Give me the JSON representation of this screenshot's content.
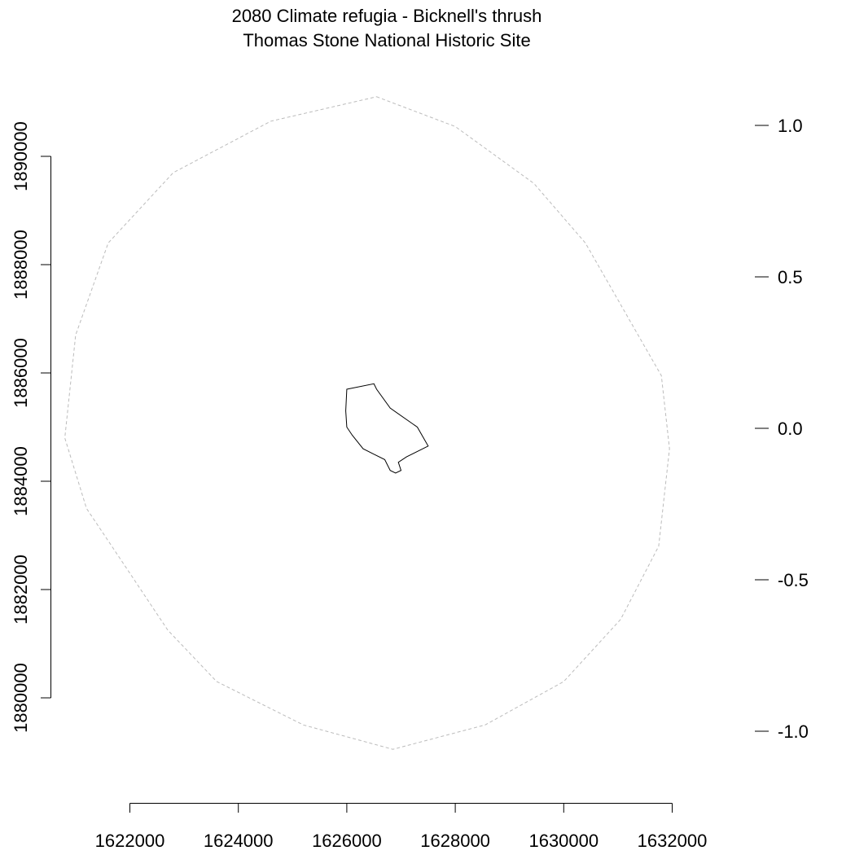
{
  "title": {
    "line1": "2080 Climate refugia - Bicknell's thrush",
    "line2": "Thomas Stone National Historic Site"
  },
  "chart_data": {
    "type": "map",
    "x_axis": {
      "range": [
        1622000,
        1632000
      ],
      "tick_values": [
        1622000,
        1624000,
        1626000,
        1628000,
        1630000,
        1632000
      ],
      "tick_labels": [
        "1622000",
        "1624000",
        "1626000",
        "1628000",
        "1630000",
        "1632000"
      ]
    },
    "y_axis": {
      "range": [
        1880000,
        1890000
      ],
      "tick_values": [
        1880000,
        1882000,
        1884000,
        1886000,
        1888000,
        1890000
      ],
      "tick_labels": [
        "1880000",
        "1882000",
        "1884000",
        "1886000",
        "1888000",
        "1890000"
      ]
    },
    "legend_axis": {
      "range": [
        -1.0,
        1.0
      ],
      "tick_values": [
        1.0,
        0.5,
        0.0,
        -0.5,
        -1.0
      ],
      "tick_labels": [
        "1.0",
        "0.5",
        "0.0",
        "-0.5",
        "-1.0"
      ]
    },
    "buffer_ring": {
      "style": "dashed",
      "color": "#bbbbbb",
      "points": [
        [
          1626550,
          1891100
        ],
        [
          1628000,
          1890550
        ],
        [
          1629450,
          1889500
        ],
        [
          1630400,
          1888400
        ],
        [
          1631200,
          1887000
        ],
        [
          1631800,
          1885950
        ],
        [
          1631950,
          1884600
        ],
        [
          1631750,
          1882800
        ],
        [
          1631050,
          1881450
        ],
        [
          1630000,
          1880300
        ],
        [
          1628550,
          1879500
        ],
        [
          1626850,
          1879050
        ],
        [
          1625200,
          1879500
        ],
        [
          1623600,
          1880300
        ],
        [
          1622700,
          1881250
        ],
        [
          1621800,
          1882600
        ],
        [
          1621200,
          1883500
        ],
        [
          1620800,
          1884800
        ],
        [
          1621000,
          1886700
        ],
        [
          1621600,
          1888400
        ],
        [
          1622800,
          1889700
        ],
        [
          1624600,
          1890650
        ]
      ]
    },
    "park_boundary": {
      "style": "solid",
      "color": "#000000",
      "points": [
        [
          1626000,
          1885700
        ],
        [
          1626500,
          1885800
        ],
        [
          1626550,
          1885700
        ],
        [
          1626800,
          1885350
        ],
        [
          1627300,
          1885000
        ],
        [
          1627500,
          1884650
        ],
        [
          1627100,
          1884450
        ],
        [
          1626950,
          1884350
        ],
        [
          1627000,
          1884200
        ],
        [
          1626900,
          1884150
        ],
        [
          1626800,
          1884200
        ],
        [
          1626700,
          1884400
        ],
        [
          1626500,
          1884500
        ],
        [
          1626300,
          1884600
        ],
        [
          1626100,
          1884850
        ],
        [
          1626000,
          1885000
        ],
        [
          1625980,
          1885300
        ]
      ]
    }
  }
}
